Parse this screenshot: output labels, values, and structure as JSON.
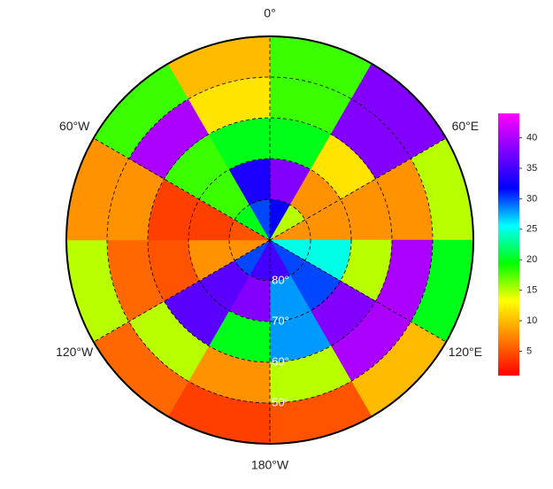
{
  "chart_data": {
    "type": "polar-raster",
    "lat_edges": [
      -90,
      -80,
      -70,
      -60,
      -50,
      -40
    ],
    "lon_edges": [
      0,
      30,
      60,
      90,
      120,
      150,
      180,
      210,
      240,
      270,
      300,
      330,
      360
    ],
    "values": [
      [
        32,
        15,
        8,
        25,
        30,
        35,
        35,
        30,
        8,
        5,
        20,
        30
      ],
      [
        38,
        8,
        8,
        25,
        30,
        28,
        38,
        36,
        8,
        4,
        18,
        33
      ],
      [
        20,
        12,
        8,
        15,
        38,
        28,
        20,
        36,
        5,
        4,
        18,
        20
      ],
      [
        18,
        38,
        8,
        40,
        40,
        15,
        8,
        15,
        6,
        8,
        40,
        12
      ],
      [
        18,
        38,
        15,
        20,
        10,
        5,
        4,
        6,
        15,
        8,
        18,
        10
      ]
    ],
    "colormap": [
      "#ff0000",
      "#ff8000",
      "#ffff00",
      "#00ff00",
      "#00ffff",
      "#0000ff",
      "#8000ff",
      "#ff00ff"
    ],
    "clim": [
      1,
      44
    ],
    "cticks": [
      5,
      10,
      15,
      20,
      25,
      30,
      35,
      40
    ],
    "lon_labels": [
      {
        "value": 0,
        "label": "0°"
      },
      {
        "value": 60,
        "label": "60°E"
      },
      {
        "value": 120,
        "label": "120°E"
      },
      {
        "value": 180,
        "label": "180°W"
      },
      {
        "value": -120,
        "label": "120°W"
      },
      {
        "value": -60,
        "label": "60°W"
      }
    ],
    "lat_labels": [
      {
        "value": -80,
        "label": "80°"
      },
      {
        "value": -70,
        "label": "70°"
      },
      {
        "value": -60,
        "label": "60°"
      },
      {
        "value": -50,
        "label": "50°"
      }
    ]
  }
}
